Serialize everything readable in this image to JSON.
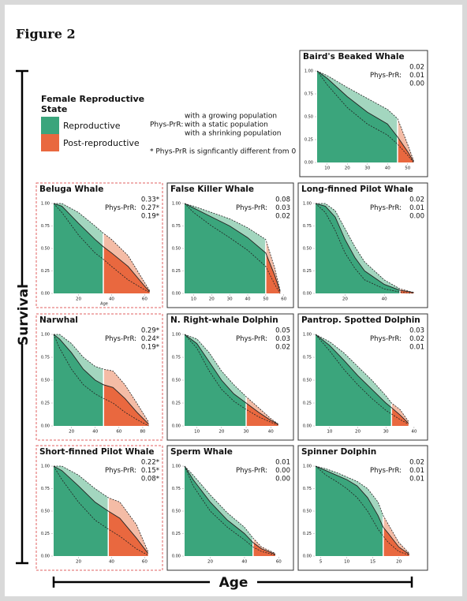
{
  "figure": {
    "title": "Figure 2",
    "y_label": "Survival",
    "x_label": "Age"
  },
  "legend": {
    "title": [
      "Female Reproductive",
      "State"
    ],
    "reproductive": "Reproductive",
    "post_reproductive": "Post-reproductive",
    "phys_prr_label": "Phys-PrR:",
    "scenarios": [
      "with a growing population",
      "with a static population",
      "with a shrinking population"
    ],
    "note": "* Phys-PrR is signficantly different from 0"
  },
  "colors": {
    "reproductive": "#3ba57c",
    "reproductive_light": "#a3d6bf",
    "post_reproductive": "#e9683f",
    "post_reproductive_light": "#f4bca6"
  },
  "chart_data": [
    {
      "type": "line",
      "title": "Baird's Beaked Whale",
      "phys_prr_label": "Phys-PrR:",
      "phys_prr": [
        "0.02",
        "0.01",
        "0.00"
      ],
      "highlight": false,
      "menopause_age": 45,
      "x": [
        5,
        10,
        20,
        30,
        40,
        45,
        50,
        53
      ],
      "series": [
        {
          "style": "dashed",
          "values": [
            1,
            0.95,
            0.82,
            0.7,
            0.58,
            0.48,
            0.2,
            0.02
          ]
        },
        {
          "style": "solid",
          "values": [
            1,
            0.92,
            0.72,
            0.55,
            0.42,
            0.28,
            0.12,
            0.01
          ]
        },
        {
          "style": "dashed",
          "values": [
            1,
            0.85,
            0.6,
            0.42,
            0.3,
            0.2,
            0.08,
            0
          ]
        }
      ],
      "xlim": [
        5,
        56
      ],
      "xticks": [
        10,
        20,
        30,
        40,
        50
      ],
      "ylim": [
        0,
        1
      ],
      "yticks": [
        {
          "value": 0,
          "label": "0.00"
        },
        {
          "value": 0.25,
          "label": "0.25"
        },
        {
          "value": 0.5,
          "label": "0.50"
        },
        {
          "value": 0.75,
          "label": "0.75"
        },
        {
          "value": 1,
          "label": "1.00"
        }
      ]
    },
    {
      "type": "line",
      "title": "Beluga Whale",
      "phys_prr_label": "Phys-PrR:",
      "phys_prr": [
        "0.33*",
        "0.27*",
        "0.19*"
      ],
      "highlight": true,
      "x_label": "Age",
      "menopause_age": 35,
      "x": [
        5,
        10,
        20,
        30,
        35,
        40,
        50,
        60,
        63
      ],
      "series": [
        {
          "style": "dashed",
          "values": [
            1,
            1,
            0.9,
            0.75,
            0.67,
            0.6,
            0.42,
            0.12,
            0.03
          ]
        },
        {
          "style": "solid",
          "values": [
            1,
            0.97,
            0.78,
            0.6,
            0.52,
            0.45,
            0.3,
            0.08,
            0.02
          ]
        },
        {
          "style": "dashed",
          "values": [
            1,
            0.9,
            0.65,
            0.45,
            0.38,
            0.3,
            0.15,
            0.04,
            0.01
          ]
        }
      ],
      "xlim": [
        5,
        66
      ],
      "xticks": [
        20,
        40,
        60
      ],
      "ylim": [
        0,
        1
      ],
      "yticks": [
        {
          "value": 0,
          "label": "0.00"
        },
        {
          "value": 0.25,
          "label": "0.25"
        },
        {
          "value": 0.5,
          "label": "0.50"
        },
        {
          "value": 0.75,
          "label": "0.75"
        },
        {
          "value": 1,
          "label": "1.00"
        }
      ]
    },
    {
      "type": "line",
      "title": "False Killer Whale",
      "phys_prr_label": "Phys-PrR:",
      "phys_prr": [
        "0.08",
        "0.03",
        "0.02"
      ],
      "highlight": false,
      "menopause_age": 50,
      "x": [
        5,
        10,
        20,
        30,
        40,
        50,
        55,
        58
      ],
      "series": [
        {
          "style": "dashed",
          "values": [
            1,
            0.97,
            0.9,
            0.83,
            0.73,
            0.6,
            0.28,
            0.03
          ]
        },
        {
          "style": "solid",
          "values": [
            1,
            0.95,
            0.85,
            0.75,
            0.62,
            0.45,
            0.2,
            0.02
          ]
        },
        {
          "style": "dashed",
          "values": [
            1,
            0.9,
            0.75,
            0.62,
            0.48,
            0.3,
            0.1,
            0
          ]
        }
      ],
      "xlim": [
        5,
        61
      ],
      "xticks": [
        10,
        20,
        30,
        40,
        50,
        60
      ],
      "ylim": [
        0,
        1
      ],
      "yticks": [
        {
          "value": 0,
          "label": "0.00"
        },
        {
          "value": 0.25,
          "label": "0.25"
        },
        {
          "value": 0.5,
          "label": "0.50"
        },
        {
          "value": 0.75,
          "label": "0.75"
        },
        {
          "value": 1,
          "label": "1.00"
        }
      ]
    },
    {
      "type": "line",
      "title": "Long-finned Pilot Whale",
      "phys_prr_label": "Phys-PrR:",
      "phys_prr": [
        "0.02",
        "0.01",
        "0.00"
      ],
      "highlight": false,
      "menopause_age": 48,
      "x": [
        5,
        10,
        15,
        20,
        25,
        30,
        40,
        48,
        55
      ],
      "series": [
        {
          "style": "dashed",
          "values": [
            1,
            1,
            0.92,
            0.72,
            0.52,
            0.35,
            0.15,
            0.05,
            0.01
          ]
        },
        {
          "style": "solid",
          "values": [
            1,
            0.97,
            0.85,
            0.6,
            0.4,
            0.25,
            0.1,
            0.035,
            0.01
          ]
        },
        {
          "style": "dashed",
          "values": [
            1,
            0.9,
            0.7,
            0.45,
            0.28,
            0.15,
            0.05,
            0.015,
            0
          ]
        }
      ],
      "xlim": [
        5,
        58
      ],
      "xticks": [
        20,
        40
      ],
      "ylim": [
        0,
        1
      ],
      "yticks": [
        {
          "value": 0,
          "label": "0.00"
        },
        {
          "value": 0.25,
          "label": "0.25"
        },
        {
          "value": 0.5,
          "label": "0.50"
        },
        {
          "value": 0.75,
          "label": "0.75"
        },
        {
          "value": 1,
          "label": "1.00"
        }
      ]
    },
    {
      "type": "line",
      "title": "Narwhal",
      "phys_prr_label": "Phys-PrR:",
      "phys_prr": [
        "0.29*",
        "0.24*",
        "0.19*"
      ],
      "highlight": true,
      "menopause_age": 47,
      "x": [
        5,
        10,
        20,
        30,
        40,
        47,
        55,
        65,
        75,
        85
      ],
      "series": [
        {
          "style": "dashed",
          "values": [
            1,
            1,
            0.9,
            0.75,
            0.65,
            0.62,
            0.6,
            0.45,
            0.25,
            0.04
          ]
        },
        {
          "style": "solid",
          "values": [
            1,
            0.95,
            0.8,
            0.62,
            0.5,
            0.45,
            0.42,
            0.3,
            0.15,
            0.02
          ]
        },
        {
          "style": "dashed",
          "values": [
            1,
            0.85,
            0.62,
            0.45,
            0.35,
            0.3,
            0.25,
            0.15,
            0.07,
            0
          ]
        }
      ],
      "xlim": [
        5,
        90
      ],
      "xticks": [
        20,
        40,
        60,
        80
      ],
      "ylim": [
        0,
        1
      ],
      "yticks": [
        {
          "value": 0,
          "label": "0.00"
        },
        {
          "value": 0.25,
          "label": "0.25"
        },
        {
          "value": 0.5,
          "label": "0.50"
        },
        {
          "value": 0.75,
          "label": "0.75"
        },
        {
          "value": 1,
          "label": "1.00"
        }
      ]
    },
    {
      "type": "line",
      "title": "N. Right-whale Dolphin",
      "phys_prr_label": "Phys-PrR:",
      "phys_prr": [
        "0.05",
        "0.03",
        "0.02"
      ],
      "highlight": false,
      "menopause_age": 30,
      "x": [
        5,
        10,
        15,
        20,
        25,
        30,
        35,
        40,
        43
      ],
      "series": [
        {
          "style": "dashed",
          "values": [
            1,
            0.95,
            0.8,
            0.6,
            0.45,
            0.32,
            0.2,
            0.08,
            0.02
          ]
        },
        {
          "style": "solid",
          "values": [
            1,
            0.9,
            0.7,
            0.5,
            0.35,
            0.25,
            0.15,
            0.06,
            0.02
          ]
        },
        {
          "style": "dashed",
          "values": [
            1,
            0.85,
            0.6,
            0.4,
            0.27,
            0.18,
            0.1,
            0.04,
            0.01
          ]
        }
      ],
      "xlim": [
        5,
        46
      ],
      "xticks": [
        10,
        20,
        30,
        40
      ],
      "ylim": [
        0,
        1
      ],
      "yticks": [
        {
          "value": 0,
          "label": "0.00"
        },
        {
          "value": 0.25,
          "label": "0.25"
        },
        {
          "value": 0.5,
          "label": "0.50"
        },
        {
          "value": 0.75,
          "label": "0.75"
        },
        {
          "value": 1,
          "label": "1.00"
        }
      ]
    },
    {
      "type": "line",
      "title": "Pantrop. Spotted Dolphin",
      "phys_prr_label": "Phys-PrR:",
      "phys_prr": [
        "0.03",
        "0.02",
        "0.01"
      ],
      "highlight": false,
      "menopause_age": 32,
      "x": [
        5,
        10,
        15,
        20,
        25,
        30,
        32,
        35,
        38
      ],
      "series": [
        {
          "style": "dashed",
          "values": [
            1,
            0.92,
            0.8,
            0.65,
            0.5,
            0.33,
            0.25,
            0.18,
            0.05
          ]
        },
        {
          "style": "solid",
          "values": [
            1,
            0.88,
            0.72,
            0.55,
            0.4,
            0.25,
            0.2,
            0.12,
            0.03
          ]
        },
        {
          "style": "dashed",
          "values": [
            1,
            0.82,
            0.62,
            0.45,
            0.3,
            0.17,
            0.13,
            0.07,
            0.02
          ]
        }
      ],
      "xlim": [
        5,
        42
      ],
      "xticks": [
        10,
        20,
        30,
        40
      ],
      "ylim": [
        0,
        1
      ],
      "yticks": [
        {
          "value": 0,
          "label": "0.00"
        },
        {
          "value": 0.25,
          "label": "0.25"
        },
        {
          "value": 0.5,
          "label": "0.50"
        },
        {
          "value": 0.75,
          "label": "0.75"
        },
        {
          "value": 1,
          "label": "1.00"
        }
      ]
    },
    {
      "type": "line",
      "title": "Short-finned Pilot Whale",
      "phys_prr_label": "Phys-PrR:",
      "phys_prr": [
        "0.22*",
        "0.15*",
        "0.08*"
      ],
      "highlight": true,
      "menopause_age": 38,
      "x": [
        5,
        10,
        20,
        30,
        38,
        45,
        55,
        62
      ],
      "series": [
        {
          "style": "dashed",
          "values": [
            1,
            1,
            0.9,
            0.75,
            0.65,
            0.6,
            0.35,
            0.05
          ]
        },
        {
          "style": "solid",
          "values": [
            1,
            0.95,
            0.78,
            0.6,
            0.5,
            0.42,
            0.2,
            0.03
          ]
        },
        {
          "style": "dashed",
          "values": [
            1,
            0.85,
            0.6,
            0.4,
            0.3,
            0.22,
            0.08,
            0.01
          ]
        }
      ],
      "xlim": [
        5,
        66
      ],
      "xticks": [
        20,
        40,
        60
      ],
      "ylim": [
        0,
        1
      ],
      "yticks": [
        {
          "value": 0,
          "label": "0.00"
        },
        {
          "value": 0.25,
          "label": "0.25"
        },
        {
          "value": 0.5,
          "label": "0.50"
        },
        {
          "value": 0.75,
          "label": "0.75"
        },
        {
          "value": 1,
          "label": "1.00"
        }
      ]
    },
    {
      "type": "line",
      "title": "Sperm Whale",
      "phys_prr_label": "Phys-PrR:",
      "phys_prr": [
        "0.01",
        "0.00",
        "0.00"
      ],
      "highlight": false,
      "menopause_age": 45,
      "x": [
        5,
        10,
        20,
        30,
        40,
        45,
        50,
        58
      ],
      "series": [
        {
          "style": "dashed",
          "values": [
            1,
            0.9,
            0.68,
            0.48,
            0.32,
            0.2,
            0.1,
            0.03
          ]
        },
        {
          "style": "solid",
          "values": [
            1,
            0.85,
            0.6,
            0.4,
            0.25,
            0.15,
            0.08,
            0.02
          ]
        },
        {
          "style": "dashed",
          "values": [
            1,
            0.78,
            0.5,
            0.32,
            0.18,
            0.1,
            0.05,
            0.01
          ]
        }
      ],
      "xlim": [
        5,
        64
      ],
      "xticks": [
        20,
        40,
        60
      ],
      "ylim": [
        0,
        1
      ],
      "yticks": [
        {
          "value": 0,
          "label": "0.00"
        },
        {
          "value": 0.25,
          "label": "0.25"
        },
        {
          "value": 0.5,
          "label": "0.50"
        },
        {
          "value": 0.75,
          "label": "0.75"
        },
        {
          "value": 1,
          "label": "1.00"
        }
      ]
    },
    {
      "type": "line",
      "title": "Spinner Dolphin",
      "phys_prr_label": "Phys-PrR:",
      "phys_prr": [
        "0.02",
        "0.01",
        "0.01"
      ],
      "highlight": false,
      "menopause_age": 17,
      "x": [
        4,
        6,
        8,
        10,
        12,
        14,
        16,
        17,
        18,
        20,
        22
      ],
      "series": [
        {
          "style": "dashed",
          "values": [
            1,
            0.97,
            0.93,
            0.88,
            0.83,
            0.75,
            0.6,
            0.45,
            0.35,
            0.15,
            0.03
          ]
        },
        {
          "style": "solid",
          "values": [
            1,
            0.95,
            0.9,
            0.85,
            0.78,
            0.65,
            0.45,
            0.32,
            0.25,
            0.1,
            0.02
          ]
        },
        {
          "style": "dashed",
          "values": [
            1,
            0.9,
            0.83,
            0.75,
            0.65,
            0.5,
            0.3,
            0.22,
            0.15,
            0.05,
            0.01
          ]
        }
      ],
      "xlim": [
        4,
        24
      ],
      "xticks": [
        5,
        10,
        15,
        20
      ],
      "ylim": [
        0,
        1
      ],
      "yticks": [
        {
          "value": 0,
          "label": "0.00"
        },
        {
          "value": 0.25,
          "label": "0.25"
        },
        {
          "value": 0.5,
          "label": "0.50"
        },
        {
          "value": 0.75,
          "label": "0.75"
        },
        {
          "value": 1,
          "label": "1.00"
        }
      ]
    }
  ]
}
